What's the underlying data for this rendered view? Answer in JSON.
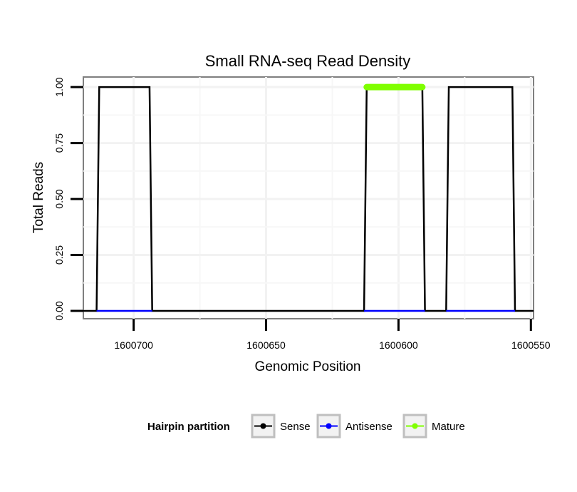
{
  "chart_data": {
    "type": "line",
    "title": "Small RNA-seq Read Density",
    "xlabel": "Genomic Position",
    "ylabel": "Total Reads",
    "x_reversed": true,
    "xlim": [
      1600719,
      1600549
    ],
    "ylim": [
      -0.035,
      1.045
    ],
    "xticks": [
      1600700,
      1600650,
      1600600,
      1600550
    ],
    "xtick_labels": [
      "1600700",
      "1600650",
      "1600600",
      "1600550"
    ],
    "yticks": [
      0,
      0.25,
      0.5,
      0.75,
      1.0
    ],
    "ytick_labels": [
      "0.00",
      "0.25",
      "0.50",
      "0.75",
      "1.00"
    ],
    "grid": true,
    "legend": {
      "title": "Hairpin partition",
      "position": "bottom",
      "entries": [
        {
          "label": "Sense",
          "color": "#000000"
        },
        {
          "label": "Antisense",
          "color": "#0000ff"
        },
        {
          "label": "Mature",
          "color": "#7fff00"
        }
      ]
    },
    "series": [
      {
        "name": "Sense",
        "color": "#000000",
        "x": [
          1600719,
          1600714,
          1600713,
          1600694,
          1600693,
          1600613,
          1600612,
          1600591,
          1600590,
          1600582,
          1600581,
          1600557,
          1600556,
          1600549
        ],
        "y": [
          0,
          0,
          1,
          1,
          0,
          0,
          1,
          1,
          0,
          0,
          1,
          1,
          0,
          0
        ]
      },
      {
        "name": "Antisense",
        "color": "#0000ff",
        "segments": [
          {
            "x": [
              1600714,
              1600693
            ],
            "y": [
              0,
              0
            ]
          },
          {
            "x": [
              1600613,
              1600590
            ],
            "y": [
              0,
              0
            ]
          },
          {
            "x": [
              1600582,
              1600556
            ],
            "y": [
              0,
              0
            ]
          }
        ]
      },
      {
        "name": "Mature",
        "color": "#7fff00",
        "x": [
          1600612,
          1600591
        ],
        "y": [
          1,
          1
        ]
      }
    ]
  }
}
